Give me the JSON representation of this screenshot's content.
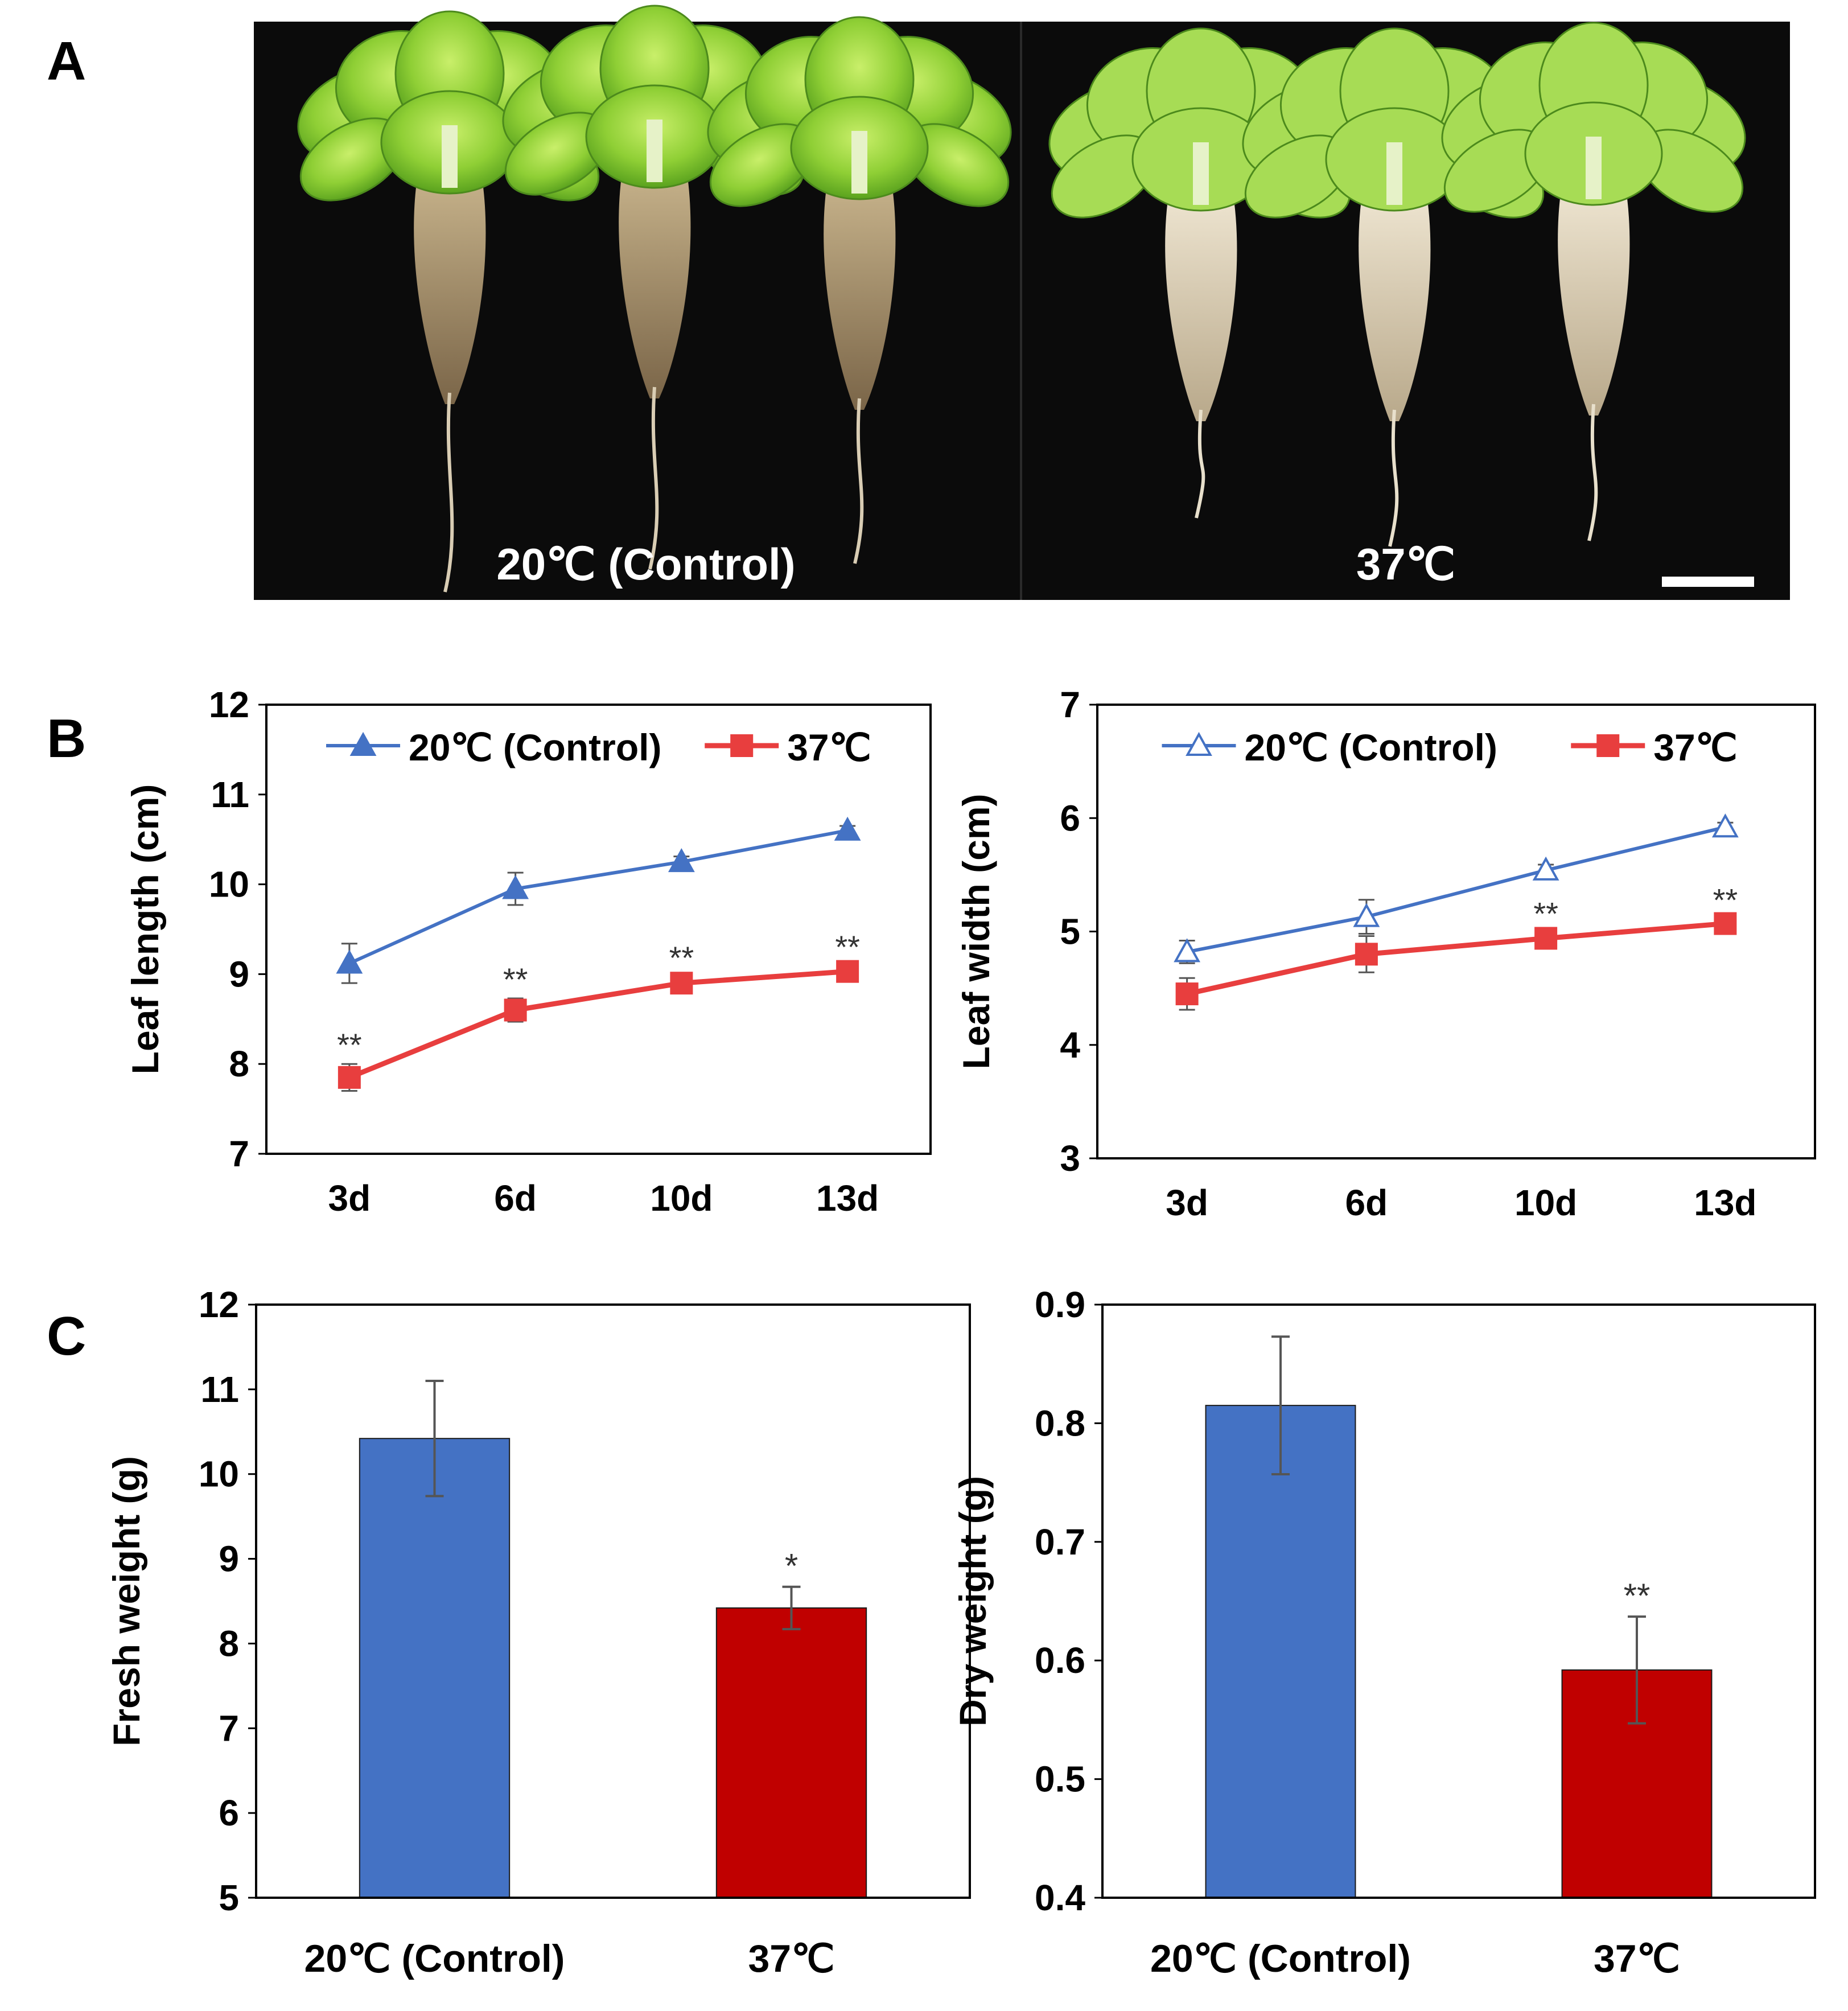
{
  "panel_labels": {
    "a": "A",
    "b": "B",
    "c": "C"
  },
  "colors": {
    "control_line": "#4472C4",
    "heat_line": "#E83E3E",
    "control_bar": "#4472C4",
    "heat_bar": "#C00000",
    "photo_background": "#0b0b0b",
    "errorbar": "#555555"
  },
  "photo": {
    "left_caption": "20℃ (Control)",
    "right_caption": "37℃",
    "has_scale_bar": true
  },
  "chart_data": [
    {
      "type": "line",
      "panel": "B",
      "ylabel": "Leaf length (cm)",
      "xlabel": "",
      "categories": [
        "3d",
        "6d",
        "10d",
        "13d"
      ],
      "ylim": [
        7,
        12
      ],
      "yticks": [
        7,
        8,
        9,
        10,
        11,
        12
      ],
      "legend": "top",
      "grid": false,
      "series": [
        {
          "name": "20℃ (Control)",
          "marker": "filled-triangle",
          "color": "#4472C4",
          "values": [
            9.12,
            9.95,
            10.25,
            10.6
          ],
          "errors": [
            0.22,
            0.18,
            0.06,
            0.05
          ]
        },
        {
          "name": "37℃",
          "marker": "filled-square",
          "color": "#E83E3E",
          "values": [
            7.85,
            8.6,
            8.9,
            9.03
          ],
          "errors": [
            0.15,
            0.13,
            0.07,
            0.06
          ],
          "annotations": [
            "**",
            "**",
            "**",
            "**"
          ]
        }
      ]
    },
    {
      "type": "line",
      "panel": "B",
      "ylabel": "Leaf width (cm)",
      "xlabel": "",
      "categories": [
        "3d",
        "6d",
        "10d",
        "13d"
      ],
      "ylim": [
        3,
        7
      ],
      "yticks": [
        3,
        4,
        5,
        6,
        7
      ],
      "legend": "top",
      "grid": false,
      "series": [
        {
          "name": "20℃ (Control)",
          "marker": "open-triangle",
          "color": "#4472C4",
          "values": [
            4.82,
            5.13,
            5.54,
            5.92
          ],
          "errors": [
            0.1,
            0.15,
            0.05,
            0.04
          ]
        },
        {
          "name": "37℃",
          "marker": "filled-square",
          "color": "#E83E3E",
          "values": [
            4.45,
            4.8,
            4.94,
            5.07
          ],
          "errors": [
            0.14,
            0.16,
            0.05,
            0.04
          ],
          "annotations": [
            "",
            "",
            "**",
            "**"
          ]
        }
      ]
    },
    {
      "type": "bar",
      "panel": "C",
      "ylabel": "Fresh weight (g)",
      "xlabel": "",
      "categories": [
        "20℃ (Control)",
        "37℃"
      ],
      "values": [
        10.42,
        8.42
      ],
      "errors": [
        0.68,
        0.25
      ],
      "annotations": [
        "",
        "*"
      ],
      "colors": [
        "#4472C4",
        "#C00000"
      ],
      "ylim": [
        5,
        12
      ],
      "yticks": [
        5,
        6,
        7,
        8,
        9,
        10,
        11,
        12
      ],
      "grid": false
    },
    {
      "type": "bar",
      "panel": "C",
      "ylabel": "Dry weight (g)",
      "xlabel": "",
      "categories": [
        "20℃ (Control)",
        "37℃"
      ],
      "values": [
        0.815,
        0.592
      ],
      "errors": [
        0.058,
        0.045
      ],
      "annotations": [
        "",
        "**"
      ],
      "colors": [
        "#4472C4",
        "#C00000"
      ],
      "ylim": [
        0.4,
        0.9
      ],
      "yticks": [
        0.4,
        0.5,
        0.6,
        0.7,
        0.8,
        0.9
      ],
      "grid": false
    }
  ]
}
